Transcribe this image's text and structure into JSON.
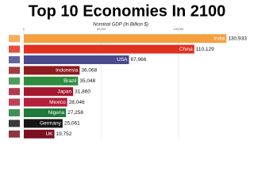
{
  "chart_data": {
    "type": "bar",
    "orientation": "horizontal",
    "title": "Top 10 Economies In 2100",
    "subtitle": "Nominal GDP (In Billion $)",
    "categories": [
      "India",
      "China",
      "USA",
      "Indonesia",
      "Brazil",
      "Japan",
      "Mexico",
      "Nigeria",
      "Germany",
      "UK"
    ],
    "values": [
      130933,
      110129,
      67966,
      36068,
      35048,
      31860,
      28046,
      27258,
      25061,
      19752
    ],
    "value_labels": [
      "130,933",
      "110,129",
      "67,966",
      "36,068",
      "35,048",
      "31,860",
      "28,046",
      "27,258",
      "25,061",
      "19,752"
    ],
    "colors": [
      "#f4a03f",
      "#e0301e",
      "#4a4a8c",
      "#8e1b1f",
      "#2f8c3e",
      "#a3182e",
      "#b3203c",
      "#1f7a3b",
      "#161616",
      "#7b1022"
    ],
    "xlim": [
      0,
      140000
    ],
    "xticks": [
      0,
      {
        "value": 50000,
        "label": "50,000"
      },
      {
        "value": 100000,
        "label": "100,000"
      }
    ],
    "grid": true
  }
}
